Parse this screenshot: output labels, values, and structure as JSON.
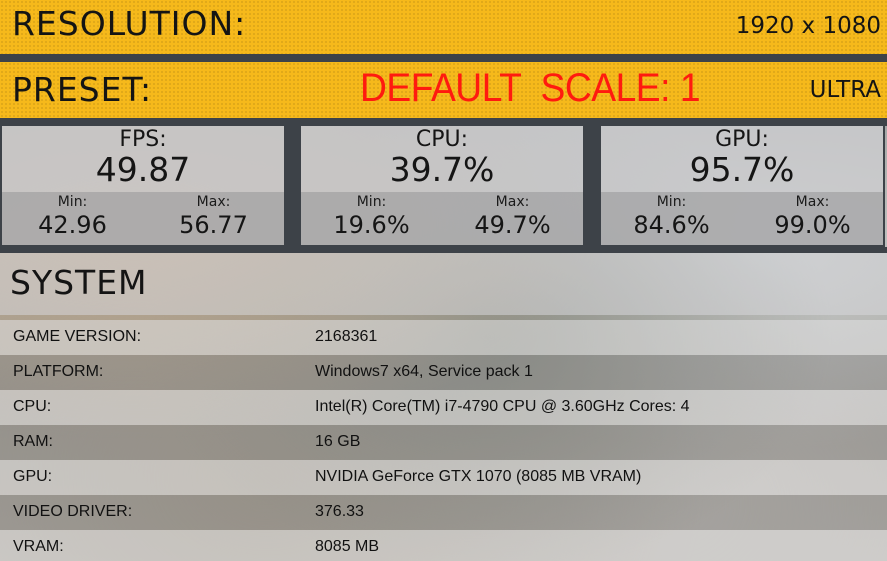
{
  "resolution": {
    "label": "RESOLUTION:",
    "value": "1920 x 1080"
  },
  "preset": {
    "label": "PRESET:",
    "center_text": "DEFAULT  SCALE: 1",
    "value": "ULTRA"
  },
  "stats": {
    "fps": {
      "label": "FPS:",
      "value": "49.87",
      "min_label": "Min:",
      "min": "42.96",
      "max_label": "Max:",
      "max": "56.77"
    },
    "cpu": {
      "label": "CPU:",
      "value": "39.7%",
      "min_label": "Min:",
      "min": "19.6%",
      "max_label": "Max:",
      "max": "49.7%"
    },
    "gpu": {
      "label": "GPU:",
      "value": "95.7%",
      "min_label": "Min:",
      "min": "84.6%",
      "max_label": "Max:",
      "max": "99.0%"
    }
  },
  "system": {
    "title": "SYSTEM",
    "rows": [
      {
        "key": "GAME VERSION:",
        "value": "2168361"
      },
      {
        "key": "PLATFORM:",
        "value": "Windows7 x64, Service pack 1"
      },
      {
        "key": "CPU:",
        "value": "Intel(R) Core(TM) i7-4790 CPU @ 3.60GHz Cores: 4"
      },
      {
        "key": "RAM:",
        "value": "16 GB"
      },
      {
        "key": "GPU:",
        "value": "NVIDIA GeForce GTX 1070 (8085 MB VRAM)"
      },
      {
        "key": "VIDEO DRIVER:",
        "value": "376.33"
      },
      {
        "key": "VRAM:",
        "value": "8085 MB"
      }
    ]
  },
  "colors": {
    "banner": "#f6b91b",
    "accent_red": "#ff1a0f",
    "separator": "#3d4248"
  }
}
